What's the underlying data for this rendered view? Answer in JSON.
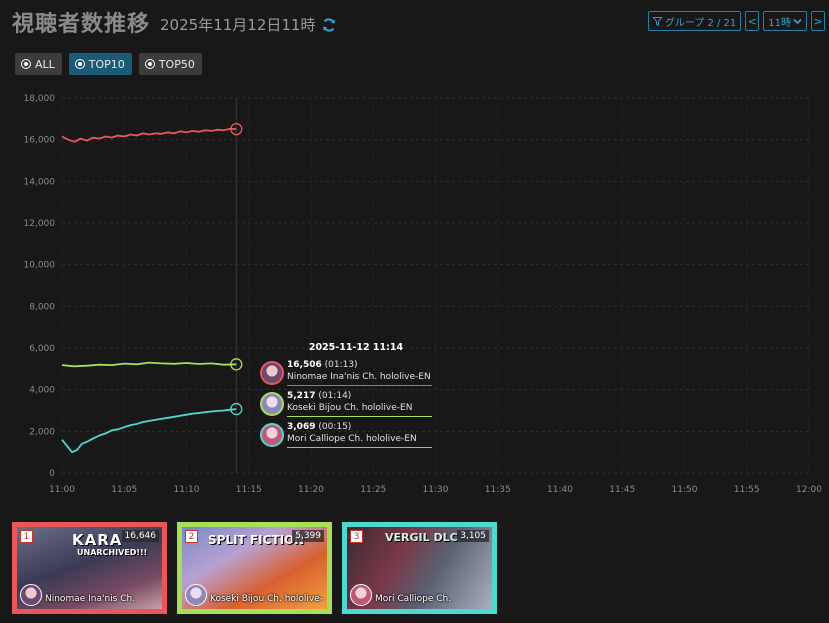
{
  "header": {
    "title": "視聴者数推移",
    "datetime": "2025年11月12日11時"
  },
  "controls": {
    "group_label": "グループ 2 / 21",
    "prev": "<",
    "hour_label": "11時",
    "next": ">"
  },
  "filters": [
    {
      "label": "ALL",
      "active": false
    },
    {
      "label": "TOP10",
      "active": true
    },
    {
      "label": "TOP50",
      "active": false
    }
  ],
  "chart_data": {
    "type": "line",
    "x_ticks": [
      "11:00",
      "11:05",
      "11:10",
      "11:15",
      "11:20",
      "11:25",
      "11:30",
      "11:35",
      "11:40",
      "11:45",
      "11:50",
      "11:55",
      "12:00"
    ],
    "y_ticks": [
      "18,000",
      "16,000",
      "14,000",
      "12,000",
      "10,000",
      "8,000",
      "6,000",
      "4,000",
      "2,000",
      "0"
    ],
    "ylim": [
      0,
      18000
    ],
    "xlim_minutes": [
      0,
      60
    ],
    "grid": true,
    "cursor_minute": 14,
    "series": [
      {
        "name": "Ninomae Ina'nis Ch. hololive-EN",
        "color": "#e8585a",
        "x": [
          0,
          0.5,
          1,
          1.5,
          2,
          2.5,
          3,
          3.5,
          4,
          4.5,
          5,
          5.5,
          6,
          6.5,
          7,
          7.5,
          8,
          8.5,
          9,
          9.5,
          10,
          10.5,
          11,
          11.5,
          12,
          12.5,
          13,
          13.5,
          14
        ],
        "y": [
          16150,
          16000,
          15900,
          16050,
          15950,
          16100,
          16050,
          16150,
          16100,
          16200,
          16150,
          16250,
          16200,
          16300,
          16250,
          16300,
          16280,
          16350,
          16300,
          16400,
          16350,
          16420,
          16380,
          16450,
          16420,
          16480,
          16450,
          16520,
          16506
        ]
      },
      {
        "name": "Koseki Bijou Ch. hololive-EN",
        "color": "#a6e05a",
        "x": [
          0,
          1,
          2,
          3,
          4,
          5,
          6,
          7,
          8,
          9,
          10,
          11,
          12,
          13,
          14
        ],
        "y": [
          5180,
          5120,
          5150,
          5200,
          5180,
          5250,
          5220,
          5300,
          5260,
          5240,
          5280,
          5230,
          5260,
          5200,
          5217
        ]
      },
      {
        "name": "Mori Calliope Ch. hololive-EN",
        "color": "#4fd8cf",
        "x": [
          0,
          0.4,
          0.8,
          1.2,
          1.6,
          2,
          2.5,
          3,
          3.5,
          4,
          4.5,
          5,
          5.5,
          6,
          6.5,
          7,
          7.5,
          8,
          8.5,
          9,
          9.5,
          10,
          10.5,
          11,
          11.5,
          12,
          12.5,
          13,
          13.5,
          14
        ],
        "y": [
          1600,
          1300,
          1000,
          1100,
          1400,
          1500,
          1650,
          1800,
          1900,
          2050,
          2100,
          2200,
          2300,
          2350,
          2450,
          2500,
          2550,
          2600,
          2650,
          2700,
          2750,
          2800,
          2850,
          2880,
          2920,
          2950,
          2980,
          3000,
          3040,
          3069
        ]
      }
    ]
  },
  "tooltip": {
    "title": "2025-11-12 11:14",
    "rows": [
      {
        "value": "16,506",
        "duration": "(01:13)",
        "name": "Ninomae Ina'nis Ch. hololive-EN",
        "color": "#e8585a"
      },
      {
        "value": "5,217",
        "duration": "(01:14)",
        "name": "Koseki Bijou Ch. hololive-EN",
        "color": "#a6e05a"
      },
      {
        "value": "3,069",
        "duration": "(00:15)",
        "name": "Mori Calliope Ch. hololive-EN",
        "color": "#4fd8cf"
      }
    ]
  },
  "cards": [
    {
      "rank": "1",
      "viewers": "16,646",
      "name": "Ninomae Ina'nis Ch.",
      "border": "#e8585a",
      "thumb_text": "KARA",
      "thumb_sub": "UNARCHIVED!!!"
    },
    {
      "rank": "2",
      "viewers": "5,399",
      "name": "Koseki Bijou Ch. hololive-",
      "border": "#a6e05a",
      "thumb_text": "SPLIT FICTION",
      "thumb_sub": ""
    },
    {
      "rank": "3",
      "viewers": "3,105",
      "name": "Mori Calliope Ch.",
      "border": "#4fd8cf",
      "thumb_text": "VERGIL DLC",
      "thumb_sub": ""
    }
  ]
}
